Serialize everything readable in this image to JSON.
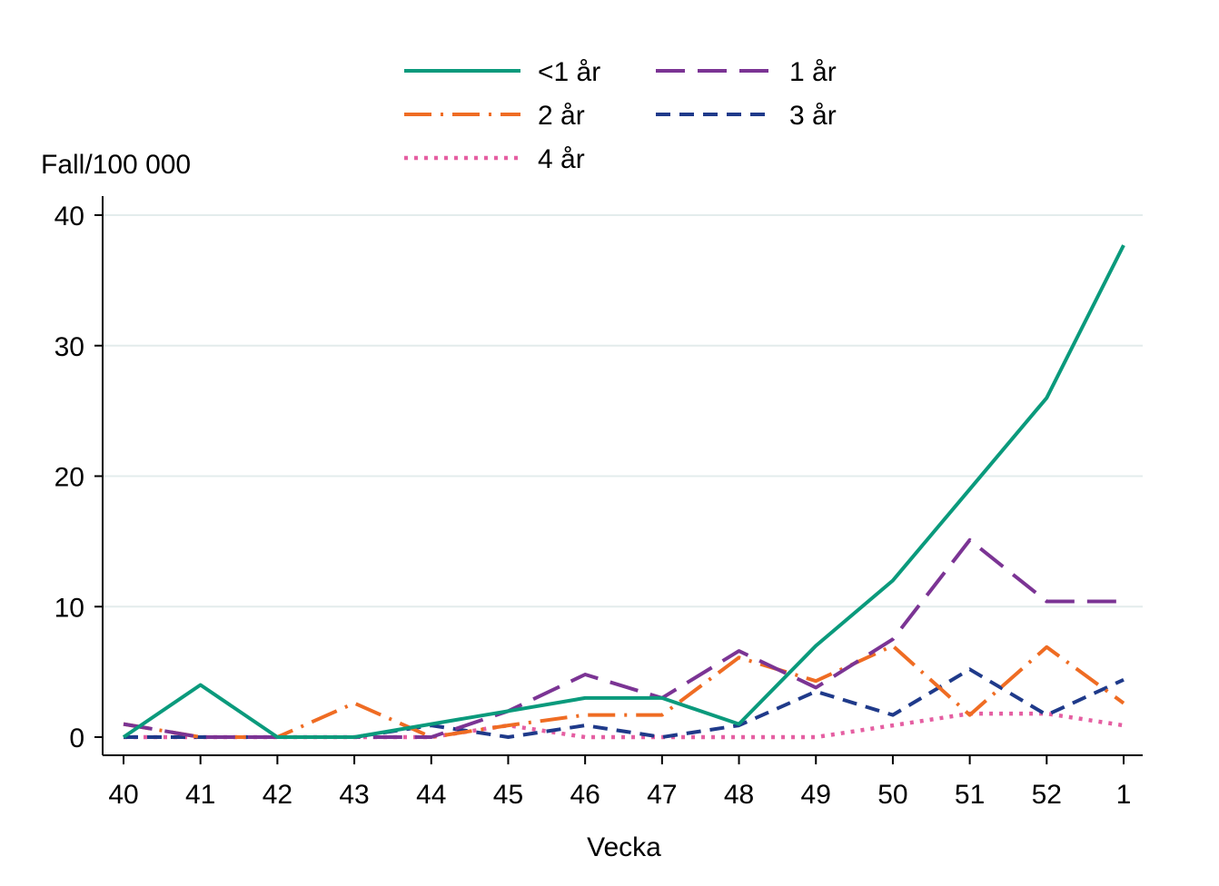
{
  "chart_data": {
    "type": "line",
    "title": "",
    "xlabel": "Vecka",
    "ylabel": "Fall/100 000",
    "ylim": [
      0,
      40
    ],
    "yticks": [
      "0",
      "10",
      "20",
      "30",
      "40"
    ],
    "categories": [
      "40",
      "41",
      "42",
      "43",
      "44",
      "45",
      "46",
      "47",
      "48",
      "49",
      "50",
      "51",
      "52",
      "1"
    ],
    "grid": "horizontal",
    "legend_position": "top",
    "series": [
      {
        "name": "<1 år",
        "color": "#0a9a7c",
        "style": "solid",
        "values": [
          0,
          4,
          0,
          0,
          1,
          2,
          3,
          3,
          1,
          7,
          12,
          19,
          26,
          37.7
        ]
      },
      {
        "name": "1 år",
        "color": "#7b3494",
        "style": "longdash",
        "values": [
          1,
          0,
          0,
          0,
          0,
          2,
          4.8,
          3,
          6.6,
          3.8,
          7.5,
          15.1,
          10.4,
          10.4
        ]
      },
      {
        "name": "2 år",
        "color": "#ef6c23",
        "style": "dashdot",
        "values": [
          1,
          0,
          0,
          2.6,
          0,
          0.9,
          1.7,
          1.7,
          6.1,
          4.3,
          7,
          1.7,
          6.9,
          2.6
        ]
      },
      {
        "name": "3 år",
        "color": "#1f3a8a",
        "style": "dash",
        "values": [
          0,
          0,
          0,
          0,
          0.9,
          0,
          0.9,
          0,
          0.9,
          3.5,
          1.7,
          5.2,
          1.7,
          4.4
        ]
      },
      {
        "name": "4 år",
        "color": "#e55fa2",
        "style": "dot",
        "values": [
          0,
          0,
          0,
          0,
          0,
          0.9,
          0,
          0,
          0,
          0,
          0.9,
          1.8,
          1.8,
          0.9
        ]
      }
    ]
  }
}
